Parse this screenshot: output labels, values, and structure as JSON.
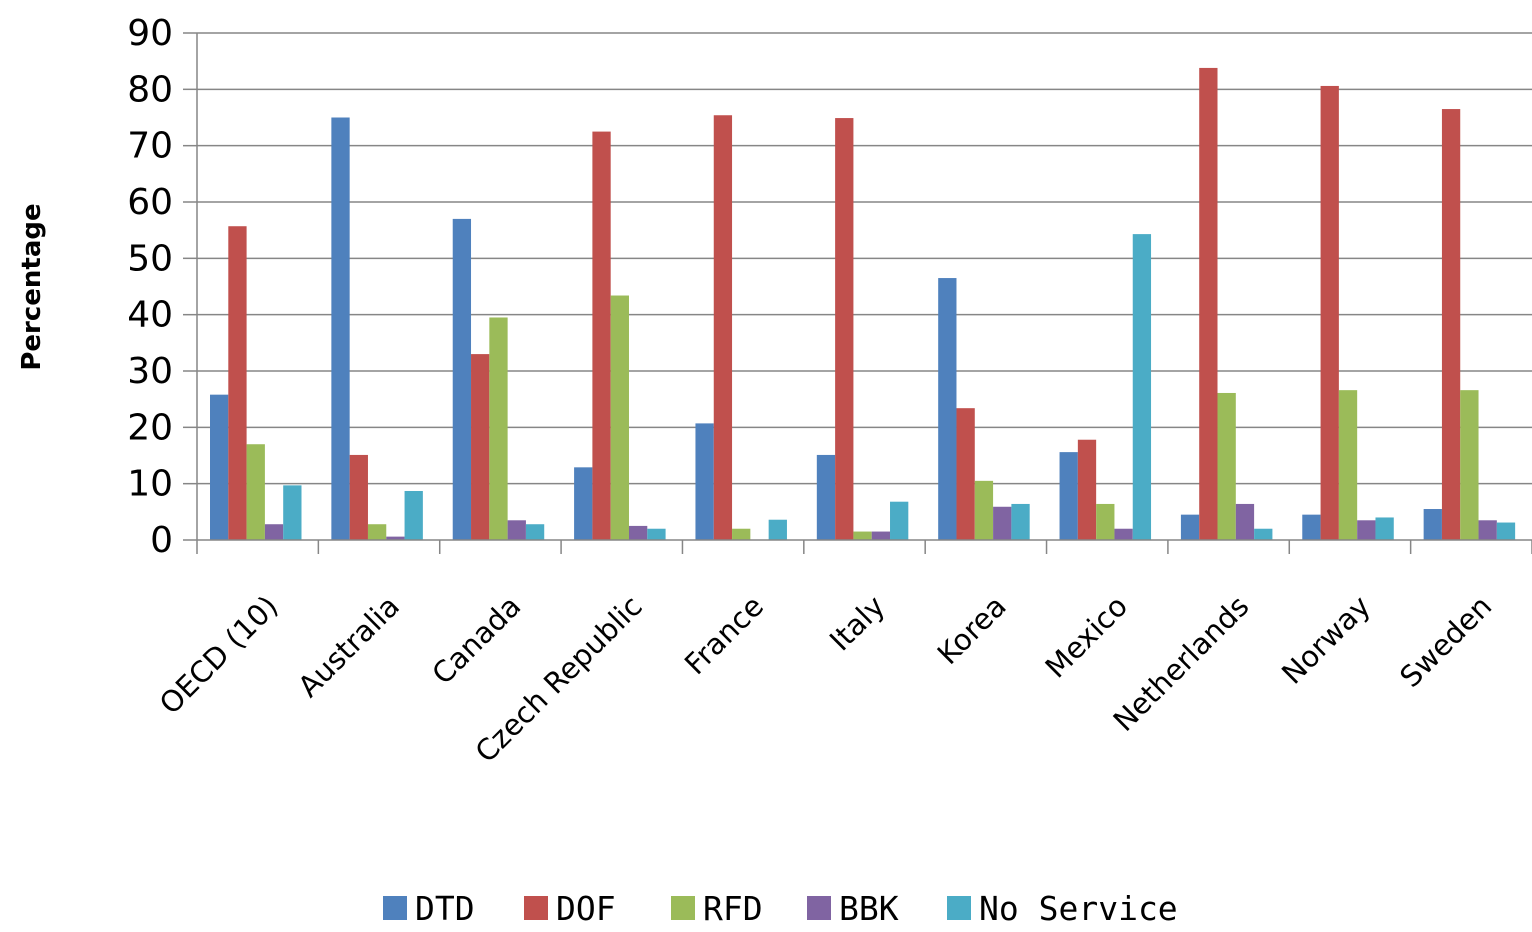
{
  "chart_data": {
    "type": "bar",
    "ylabel": "Percentage",
    "xlabel": "",
    "ylim": [
      0,
      90
    ],
    "yticks": [
      "0",
      "10",
      "20",
      "30",
      "40",
      "50",
      "60",
      "70",
      "80",
      "90"
    ],
    "grid": true,
    "legend_position": "bottom",
    "categories": [
      "OECD (10)",
      "Australia",
      "Canada",
      "Czech Republic",
      "France",
      "Italy",
      "Korea",
      "Mexico",
      "Netherlands",
      "Norway",
      "Sweden"
    ],
    "series": [
      {
        "name": "DTD",
        "color": "#4F81BD",
        "values": [
          25.8,
          75,
          57,
          12.9,
          20.7,
          15.1,
          46.5,
          15.6,
          4.5,
          4.5,
          5.5
        ]
      },
      {
        "name": "DOF",
        "color": "#C0504D",
        "values": [
          55.7,
          15.1,
          33,
          72.5,
          75.4,
          74.9,
          23.4,
          17.8,
          83.8,
          80.6,
          76.5
        ]
      },
      {
        "name": "RFD",
        "color": "#9BBB59",
        "values": [
          17,
          2.8,
          39.5,
          43.4,
          2,
          1.5,
          10.5,
          6.4,
          26.1,
          26.6,
          26.6
        ]
      },
      {
        "name": "BBK",
        "color": "#8064A2",
        "values": [
          2.8,
          0.6,
          3.5,
          2.5,
          0,
          1.5,
          5.9,
          2,
          6.4,
          3.5,
          3.5
        ]
      },
      {
        "name": "No Service",
        "color": "#4BACC6",
        "values": [
          9.7,
          8.7,
          2.8,
          2,
          3.6,
          6.8,
          6.4,
          54.3,
          2,
          4,
          3.1
        ]
      }
    ]
  }
}
